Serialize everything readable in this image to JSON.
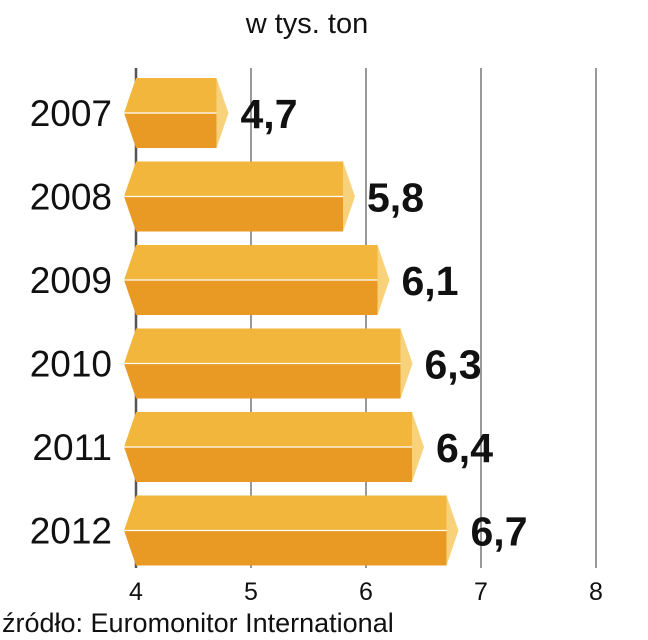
{
  "colors": {
    "bar_top": "#f3b63d",
    "bar_bottom": "#e89a25",
    "bar_end": "#f7d27a",
    "grid": "#555555",
    "text": "#111111"
  },
  "chart_data": {
    "type": "bar",
    "orientation": "horizontal",
    "subtitle": "w tys. ton",
    "categories": [
      "2007",
      "2008",
      "2009",
      "2010",
      "2011",
      "2012"
    ],
    "values": [
      4.7,
      5.8,
      6.1,
      6.3,
      6.4,
      6.7
    ],
    "value_labels": [
      "4,7",
      "5,8",
      "6,1",
      "6,3",
      "6,4",
      "6,7"
    ],
    "xlim": [
      4,
      8
    ],
    "xticks": [
      "4",
      "5",
      "6",
      "7",
      "8"
    ],
    "grid": true,
    "source": "źródło: Euromonitor International"
  }
}
